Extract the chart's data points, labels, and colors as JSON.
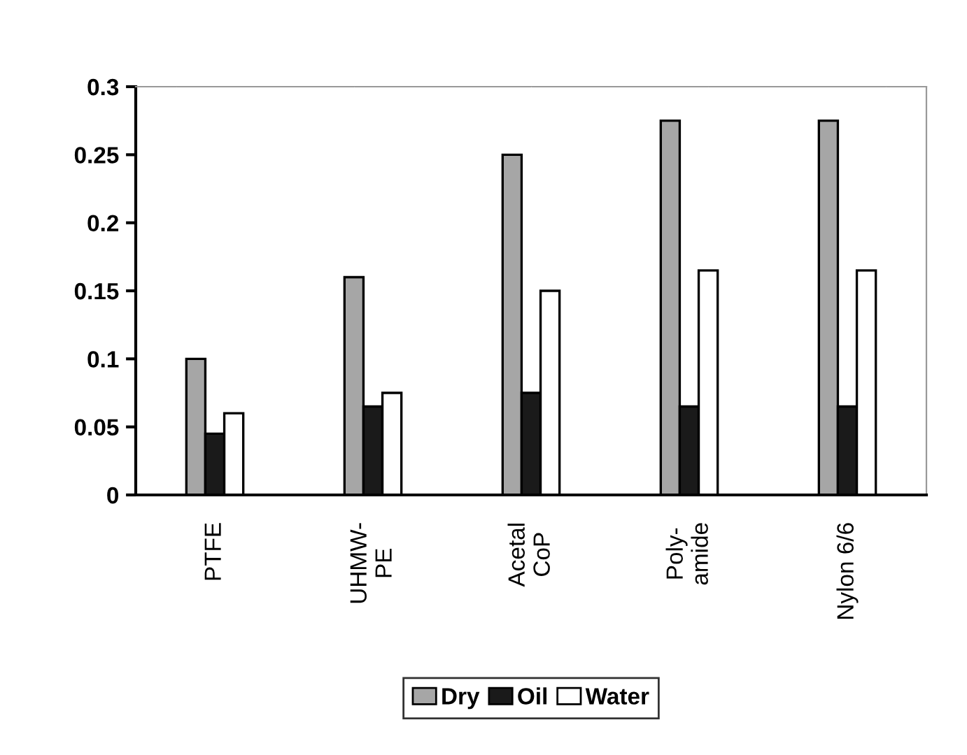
{
  "chart_data": {
    "type": "bar",
    "categories": [
      "PTFE",
      "UHMW-\nPE",
      "Acetal\nCoP",
      "Poly-\namide",
      "Nylon 6/6"
    ],
    "series": [
      {
        "name": "Dry",
        "color": "#a6a6a6",
        "values": [
          0.1,
          0.16,
          0.25,
          0.275,
          0.275
        ]
      },
      {
        "name": "Oil",
        "color": "#1a1a1a",
        "values": [
          0.045,
          0.065,
          0.075,
          0.065,
          0.065
        ]
      },
      {
        "name": "Water",
        "color": "#ffffff",
        "values": [
          0.06,
          0.075,
          0.15,
          0.165,
          0.165
        ]
      }
    ],
    "ylim": [
      0,
      0.3
    ],
    "yticks": [
      0,
      0.05,
      0.1,
      0.15,
      0.2,
      0.25,
      0.3
    ],
    "grid": false,
    "legend": "bottom"
  }
}
